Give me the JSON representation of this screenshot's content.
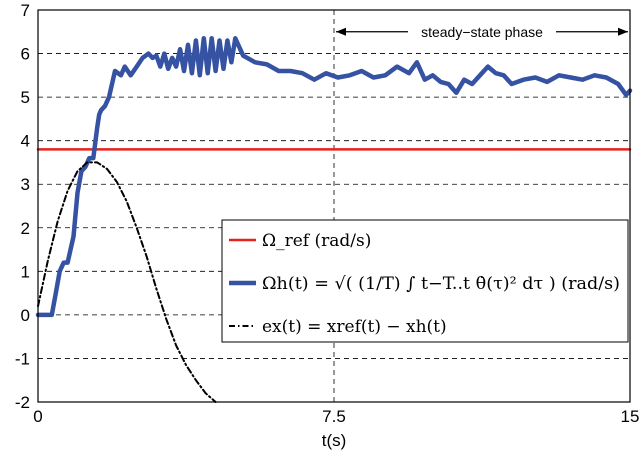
{
  "chart_data": {
    "type": "line",
    "title": "",
    "xlabel": "t(s)",
    "ylabel": "",
    "xlim": [
      0,
      15
    ],
    "ylim": [
      -2,
      7
    ],
    "xticks": [
      "0",
      "7.5",
      "15"
    ],
    "yticks": [
      "7",
      "6",
      "5",
      "4",
      "3",
      "2",
      "1",
      "0",
      "-1",
      "-2"
    ],
    "grid": true,
    "legend_position": "lower-right",
    "annotation": {
      "text": "steady−state phase",
      "x_start": 7.5,
      "x_end": 15,
      "y": 6.5
    },
    "series": [
      {
        "name": "Ωref (rad/s)",
        "legend": "Ω_ref (rad/s)",
        "color": "#e8201c",
        "style": "solid",
        "x": [
          0,
          15
        ],
        "y": [
          3.8,
          3.8
        ]
      },
      {
        "name": "Ωh(t)",
        "legend": "Ωh(t) = √( (1/T) ∫ t−T..t θ̇(τ)² dτ ) (rad/s)",
        "color": "#3552a3",
        "style": "solid",
        "x": [
          0,
          0.35,
          0.45,
          0.55,
          0.65,
          0.75,
          0.9,
          1.0,
          1.1,
          1.2,
          1.3,
          1.4,
          1.5,
          1.55,
          1.6,
          1.7,
          1.8,
          1.95,
          2.1,
          2.2,
          2.35,
          2.5,
          2.65,
          2.8,
          2.9,
          3.0,
          3.1,
          3.2,
          3.3,
          3.4,
          3.5,
          3.6,
          3.7,
          3.8,
          3.9,
          4.0,
          4.1,
          4.2,
          4.3,
          4.4,
          4.5,
          4.6,
          4.7,
          4.8,
          4.9,
          5.0,
          5.2,
          5.5,
          5.8,
          6.1,
          6.4,
          6.7,
          7.0,
          7.3,
          7.6,
          7.9,
          8.2,
          8.5,
          8.8,
          9.1,
          9.4,
          9.6,
          9.8,
          10.0,
          10.2,
          10.4,
          10.6,
          10.8,
          11.0,
          11.2,
          11.4,
          11.6,
          11.8,
          12.0,
          12.3,
          12.6,
          12.9,
          13.2,
          13.5,
          13.8,
          14.1,
          14.4,
          14.7,
          14.9,
          15.0
        ],
        "y": [
          0,
          0,
          0.5,
          1.0,
          1.2,
          1.2,
          1.8,
          2.8,
          3.3,
          3.4,
          3.6,
          3.6,
          4.3,
          4.6,
          4.7,
          4.8,
          5.0,
          5.6,
          5.5,
          5.7,
          5.5,
          5.7,
          5.9,
          6.0,
          5.9,
          5.95,
          5.7,
          6.0,
          5.65,
          5.9,
          5.7,
          6.1,
          5.6,
          6.2,
          5.55,
          6.3,
          5.5,
          6.35,
          5.55,
          6.35,
          5.6,
          6.3,
          5.65,
          6.3,
          5.8,
          6.35,
          5.95,
          5.8,
          5.75,
          5.6,
          5.6,
          5.55,
          5.4,
          5.55,
          5.45,
          5.5,
          5.6,
          5.45,
          5.5,
          5.7,
          5.55,
          5.8,
          5.4,
          5.5,
          5.35,
          5.3,
          5.1,
          5.4,
          5.3,
          5.5,
          5.7,
          5.55,
          5.5,
          5.3,
          5.4,
          5.45,
          5.35,
          5.5,
          5.45,
          5.4,
          5.5,
          5.45,
          5.3,
          5.05,
          5.15
        ]
      },
      {
        "name": "ex(t)",
        "legend": "ex(t) = xref(t) − xh(t)",
        "color": "#000000",
        "style": "dashdot",
        "x": [
          0,
          0.25,
          0.5,
          0.75,
          1.0,
          1.25,
          1.5,
          1.75,
          2.0,
          2.25,
          2.5,
          2.75,
          3.0,
          3.25,
          3.5,
          3.75,
          4.0,
          4.25,
          4.5
        ],
        "y": [
          0.2,
          1.25,
          2.15,
          2.85,
          3.3,
          3.5,
          3.5,
          3.35,
          3.05,
          2.6,
          2.0,
          1.35,
          0.6,
          -0.1,
          -0.7,
          -1.15,
          -1.5,
          -1.8,
          -2.0
        ]
      }
    ]
  }
}
